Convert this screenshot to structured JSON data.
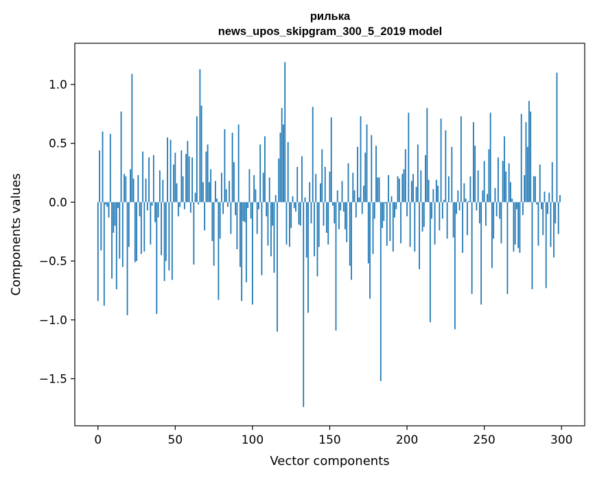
{
  "chart_data": {
    "type": "bar",
    "title": "рилька",
    "subtitle": "news_upos_skipgram_300_5_2019 model",
    "xlabel": "Vector components",
    "ylabel": "Components values",
    "xlim": [
      -15,
      315
    ],
    "ylim": [
      -1.9,
      1.35
    ],
    "x_ticks": [
      0,
      50,
      100,
      150,
      200,
      250,
      300
    ],
    "y_ticks": [
      -1.5,
      -1.0,
      -0.5,
      0.0,
      0.5,
      1.0
    ],
    "x_tick_labels": [
      "0",
      "50",
      "100",
      "150",
      "200",
      "250",
      "300"
    ],
    "y_tick_labels": [
      "−1.5",
      "−1.0",
      "−0.5",
      "0.0",
      "0.5",
      "1.0"
    ],
    "bar_color": "#1f77b4",
    "grid": false,
    "x": [
      0,
      1,
      2,
      3,
      4,
      5,
      6,
      7,
      8,
      9,
      10,
      11,
      12,
      13,
      14,
      15,
      16,
      17,
      18,
      19,
      20,
      21,
      22,
      23,
      24,
      25,
      26,
      27,
      28,
      29,
      30,
      31,
      32,
      33,
      34,
      35,
      36,
      37,
      38,
      39,
      40,
      41,
      42,
      43,
      44,
      45,
      46,
      47,
      48,
      49,
      50,
      51,
      52,
      53,
      54,
      55,
      56,
      57,
      58,
      59,
      60,
      61,
      62,
      63,
      64,
      65,
      66,
      67,
      68,
      69,
      70,
      71,
      72,
      73,
      74,
      75,
      76,
      77,
      78,
      79,
      80,
      81,
      82,
      83,
      84,
      85,
      86,
      87,
      88,
      89,
      90,
      91,
      92,
      93,
      94,
      95,
      96,
      97,
      98,
      99,
      100,
      101,
      102,
      103,
      104,
      105,
      106,
      107,
      108,
      109,
      110,
      111,
      112,
      113,
      114,
      115,
      116,
      117,
      118,
      119,
      120,
      121,
      122,
      123,
      124,
      125,
      126,
      127,
      128,
      129,
      130,
      131,
      132,
      133,
      134,
      135,
      136,
      137,
      138,
      139,
      140,
      141,
      142,
      143,
      144,
      145,
      146,
      147,
      148,
      149,
      150,
      151,
      152,
      153,
      154,
      155,
      156,
      157,
      158,
      159,
      160,
      161,
      162,
      163,
      164,
      165,
      166,
      167,
      168,
      169,
      170,
      171,
      172,
      173,
      174,
      175,
      176,
      177,
      178,
      179,
      180,
      181,
      182,
      183,
      184,
      185,
      186,
      187,
      188,
      189,
      190,
      191,
      192,
      193,
      194,
      195,
      196,
      197,
      198,
      199,
      200,
      201,
      202,
      203,
      204,
      205,
      206,
      207,
      208,
      209,
      210,
      211,
      212,
      213,
      214,
      215,
      216,
      217,
      218,
      219,
      220,
      221,
      222,
      223,
      224,
      225,
      226,
      227,
      228,
      229,
      230,
      231,
      232,
      233,
      234,
      235,
      236,
      237,
      238,
      239,
      240,
      241,
      242,
      243,
      244,
      245,
      246,
      247,
      248,
      249,
      250,
      251,
      252,
      253,
      254,
      255,
      256,
      257,
      258,
      259,
      260,
      261,
      262,
      263,
      264,
      265,
      266,
      267,
      268,
      269,
      270,
      271,
      272,
      273,
      274,
      275,
      276,
      277,
      278,
      279,
      280,
      281,
      282,
      283,
      284,
      285,
      286,
      287,
      288,
      289,
      290,
      291,
      292,
      293,
      294,
      295,
      296,
      297,
      298,
      299
    ],
    "values": [
      -0.84,
      0.44,
      -0.41,
      0.6,
      -0.88,
      -0.02,
      -0.04,
      -0.13,
      0.58,
      -0.65,
      -0.26,
      -0.2,
      -0.74,
      -0.05,
      -0.48,
      0.77,
      -0.55,
      0.24,
      0.22,
      -0.96,
      -0.38,
      0.28,
      1.09,
      0.2,
      -0.51,
      -0.5,
      0.23,
      -0.12,
      -0.44,
      0.43,
      -0.42,
      0.2,
      -0.07,
      0.38,
      -0.36,
      -0.03,
      0.4,
      -0.17,
      -0.95,
      -0.13,
      0.27,
      -0.45,
      0.19,
      -0.67,
      -0.5,
      0.55,
      -0.58,
      0.53,
      -0.66,
      0.32,
      0.42,
      0.16,
      -0.12,
      -0.04,
      0.44,
      0.22,
      -0.06,
      0.41,
      0.52,
      0.39,
      -0.09,
      0.38,
      -0.53,
      0.08,
      0.73,
      -0.02,
      1.13,
      0.82,
      0.17,
      -0.24,
      0.43,
      0.49,
      0.17,
      0.28,
      -0.33,
      -0.54,
      0.18,
      0.03,
      -0.83,
      -0.31,
      0.25,
      -0.1,
      0.62,
      0.11,
      -0.04,
      0.18,
      -0.27,
      0.59,
      0.34,
      -0.11,
      -0.4,
      0.66,
      -0.55,
      -0.84,
      -0.16,
      -0.17,
      -0.68,
      -0.05,
      0.28,
      -0.14,
      -0.87,
      0.23,
      0.11,
      -0.27,
      -0.06,
      0.49,
      -0.62,
      0.25,
      0.56,
      -0.12,
      -0.37,
      0.21,
      -0.46,
      -0.2,
      -0.6,
      0.06,
      -1.1,
      0.37,
      0.59,
      0.8,
      0.66,
      1.19,
      -0.36,
      0.51,
      -0.38,
      -0.22,
      0.05,
      -0.05,
      -0.08,
      0.3,
      -0.19,
      -0.2,
      0.39,
      -1.74,
      0.04,
      -0.47,
      -0.94,
      0.17,
      -0.18,
      0.81,
      -0.46,
      0.24,
      -0.63,
      -0.38,
      0.16,
      0.45,
      -0.2,
      0.3,
      -0.26,
      -0.36,
      0.26,
      0.72,
      -0.03,
      -0.18,
      -1.09,
      0.1,
      -0.23,
      -0.07,
      0.18,
      -0.08,
      -0.23,
      -0.34,
      0.33,
      -0.54,
      -0.66,
      0.25,
      0.1,
      -0.13,
      0.47,
      0.04,
      0.73,
      -0.1,
      0.14,
      0.42,
      0.66,
      -0.52,
      -0.82,
      0.57,
      -0.44,
      -0.14,
      0.48,
      0.21,
      0.21,
      -1.52,
      -0.22,
      -0.16,
      -0.01,
      -0.37,
      0.23,
      -0.33,
      0.05,
      -0.42,
      -0.13,
      -0.06,
      0.22,
      0.2,
      -0.35,
      0.24,
      0.28,
      0.45,
      -0.12,
      0.76,
      -0.38,
      0.18,
      0.24,
      -0.42,
      0.13,
      0.49,
      -0.57,
      0.27,
      -0.25,
      -0.21,
      0.4,
      0.8,
      0.19,
      -1.02,
      -0.14,
      0.11,
      -0.36,
      0.19,
      0.14,
      -0.24,
      0.71,
      -0.14,
      0.02,
      0.61,
      -0.31,
      0.22,
      0.0,
      0.47,
      -0.3,
      -1.08,
      -0.1,
      0.1,
      -0.07,
      0.73,
      -0.43,
      0.16,
      0.03,
      -0.28,
      0.01,
      0.22,
      -0.78,
      0.68,
      0.48,
      -0.07,
      0.27,
      -0.18,
      -0.87,
      0.1,
      0.35,
      -0.2,
      0.07,
      0.45,
      0.76,
      -0.56,
      -0.31,
      0.12,
      -0.12,
      0.38,
      -0.14,
      -0.35,
      0.35,
      0.56,
      0.26,
      -0.78,
      0.33,
      0.17,
      0.03,
      -0.42,
      -0.36,
      -0.06,
      -0.39,
      -0.43,
      0.75,
      -0.11,
      0.23,
      0.68,
      0.47,
      0.86,
      0.77,
      -0.74,
      0.22,
      0.22,
      -0.02,
      -0.37,
      0.32,
      -0.06,
      -0.28,
      0.09,
      -0.73,
      -0.1,
      0.08,
      -0.38,
      0.34,
      -0.47,
      -0.18,
      1.1,
      -0.27,
      0.06
    ]
  }
}
